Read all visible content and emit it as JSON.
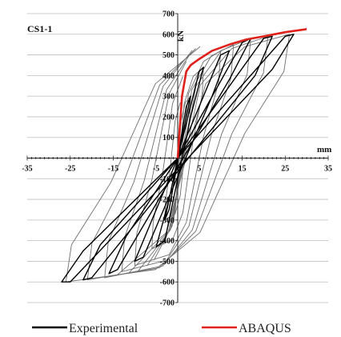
{
  "chart_data": {
    "type": "line",
    "title": "CS1-1",
    "xlabel": "mm",
    "ylabel": "kN",
    "xlim": [
      -35,
      35
    ],
    "ylim": [
      -700,
      700
    ],
    "x_ticks": [
      -35,
      -25,
      -15,
      -5,
      5,
      15,
      25,
      35
    ],
    "x_tick_labels": [
      "-35",
      "-25",
      "-15",
      "-5",
      "5",
      "15",
      "25",
      "35"
    ],
    "y_ticks": [
      -700,
      -600,
      -500,
      -400,
      -300,
      -200,
      -100,
      100,
      200,
      300,
      400,
      500,
      600,
      700
    ],
    "y_tick_labels": [
      "-700",
      "-600",
      "-500",
      "-400",
      "-300",
      "-200",
      "-100",
      "100",
      "200",
      "300",
      "400",
      "500",
      "600",
      "700"
    ],
    "grid": true,
    "legend_position": "bottom",
    "series": [
      {
        "name": "Experimental",
        "color": "#000000",
        "x": [
          0,
          2,
          3,
          1,
          -2,
          -3,
          -1,
          0,
          5,
          6,
          3,
          -3,
          -5,
          -2,
          0,
          10,
          12,
          8,
          -8,
          -10,
          -6,
          0,
          15,
          17,
          12,
          -14,
          -16,
          -12,
          0,
          20,
          22,
          18,
          -20,
          -22,
          -18,
          0,
          25,
          27,
          22,
          -25,
          -27,
          -22,
          0
        ],
        "y": [
          0,
          250,
          300,
          100,
          -250,
          -300,
          -100,
          0,
          420,
          440,
          200,
          -400,
          -430,
          -200,
          0,
          500,
          520,
          300,
          -480,
          -500,
          -300,
          0,
          560,
          580,
          380,
          -540,
          -560,
          -380,
          0,
          580,
          590,
          400,
          -580,
          -590,
          -420,
          0,
          590,
          600,
          430,
          -600,
          -600,
          -450,
          0
        ]
      },
      {
        "name": "ABAQUS",
        "color": "#e0201b",
        "x": [
          0,
          0.5,
          1,
          2,
          3,
          5,
          8,
          12,
          16,
          20,
          25,
          30
        ],
        "y": [
          0,
          150,
          300,
          420,
          450,
          480,
          520,
          550,
          575,
          590,
          610,
          625
        ]
      }
    ]
  },
  "legend": {
    "experimental_label": "Experimental",
    "abaqus_label": "ABAQUS"
  },
  "colors": {
    "experimental": "#000000",
    "abaqus": "#e0201b",
    "grid": "#bdbdbd",
    "loops": "#6e6e6e"
  }
}
